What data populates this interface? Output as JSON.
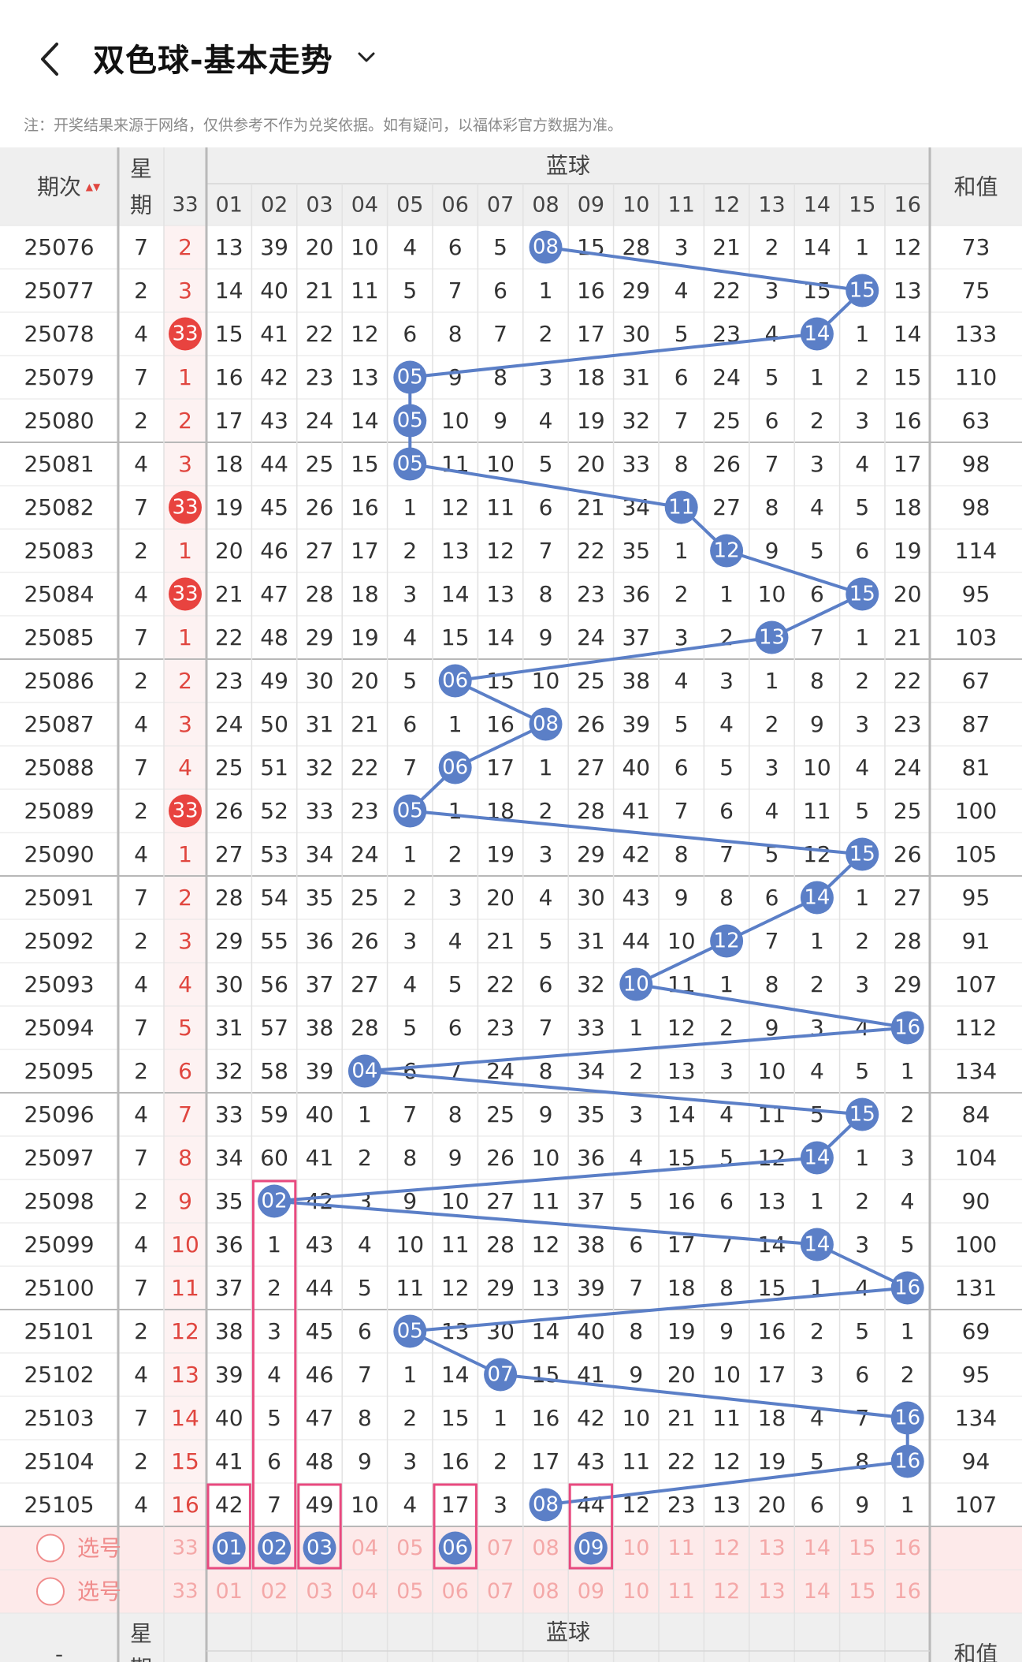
{
  "header": {
    "title": "双色球-基本走势",
    "notice": "注：开奖结果来源于网络，仅供参考不作为兑奖依据。如有疑问，以福体彩官方数据为准。"
  },
  "table": {
    "col_period": "期次",
    "sort_glyph": "▲▼",
    "col_week_top": "星",
    "col_week_bottom": "期",
    "col_left33": "33",
    "group_label": "蓝球",
    "col_sum": "和值",
    "blue_columns": [
      "01",
      "02",
      "03",
      "04",
      "05",
      "06",
      "07",
      "08",
      "09",
      "10",
      "11",
      "12",
      "13",
      "14",
      "15",
      "16"
    ],
    "rows": [
      {
        "period": "25076",
        "week": "7",
        "left": "2",
        "leftBall": false,
        "blue": [
          "13",
          "39",
          "20",
          "10",
          "4",
          "6",
          "5",
          "08",
          "15",
          "28",
          "3",
          "21",
          "2",
          "14",
          "1",
          "12"
        ],
        "hit": 8,
        "sum": "73"
      },
      {
        "period": "25077",
        "week": "2",
        "left": "3",
        "leftBall": false,
        "blue": [
          "14",
          "40",
          "21",
          "11",
          "5",
          "7",
          "6",
          "1",
          "16",
          "29",
          "4",
          "22",
          "3",
          "15",
          "15",
          "13"
        ],
        "hit": 15,
        "sum": "75"
      },
      {
        "period": "25078",
        "week": "4",
        "left": "33",
        "leftBall": true,
        "blue": [
          "15",
          "41",
          "22",
          "12",
          "6",
          "8",
          "7",
          "2",
          "17",
          "30",
          "5",
          "23",
          "4",
          "14",
          "1",
          "14"
        ],
        "hit": 14,
        "sum": "133"
      },
      {
        "period": "25079",
        "week": "7",
        "left": "1",
        "leftBall": false,
        "blue": [
          "16",
          "42",
          "23",
          "13",
          "05",
          "9",
          "8",
          "3",
          "18",
          "31",
          "6",
          "24",
          "5",
          "1",
          "2",
          "15"
        ],
        "hit": 5,
        "sum": "110"
      },
      {
        "period": "25080",
        "week": "2",
        "left": "2",
        "leftBall": false,
        "blue": [
          "17",
          "43",
          "24",
          "14",
          "05",
          "10",
          "9",
          "4",
          "19",
          "32",
          "7",
          "25",
          "6",
          "2",
          "3",
          "16"
        ],
        "hit": 5,
        "sum": "63"
      },
      {
        "period": "25081",
        "week": "4",
        "left": "3",
        "leftBall": false,
        "blue": [
          "18",
          "44",
          "25",
          "15",
          "05",
          "11",
          "10",
          "5",
          "20",
          "33",
          "8",
          "26",
          "7",
          "3",
          "4",
          "17"
        ],
        "hit": 5,
        "sum": "98"
      },
      {
        "period": "25082",
        "week": "7",
        "left": "33",
        "leftBall": true,
        "blue": [
          "19",
          "45",
          "26",
          "16",
          "1",
          "12",
          "11",
          "6",
          "21",
          "34",
          "11",
          "27",
          "8",
          "4",
          "5",
          "18"
        ],
        "hit": 11,
        "sum": "98"
      },
      {
        "period": "25083",
        "week": "2",
        "left": "1",
        "leftBall": false,
        "blue": [
          "20",
          "46",
          "27",
          "17",
          "2",
          "13",
          "12",
          "7",
          "22",
          "35",
          "1",
          "12",
          "9",
          "5",
          "6",
          "19"
        ],
        "hit": 12,
        "sum": "114"
      },
      {
        "period": "25084",
        "week": "4",
        "left": "33",
        "leftBall": true,
        "blue": [
          "21",
          "47",
          "28",
          "18",
          "3",
          "14",
          "13",
          "8",
          "23",
          "36",
          "2",
          "1",
          "10",
          "6",
          "15",
          "20"
        ],
        "hit": 15,
        "sum": "95"
      },
      {
        "period": "25085",
        "week": "7",
        "left": "1",
        "leftBall": false,
        "blue": [
          "22",
          "48",
          "29",
          "19",
          "4",
          "15",
          "14",
          "9",
          "24",
          "37",
          "3",
          "2",
          "13",
          "7",
          "1",
          "21"
        ],
        "hit": 13,
        "sum": "103"
      },
      {
        "period": "25086",
        "week": "2",
        "left": "2",
        "leftBall": false,
        "blue": [
          "23",
          "49",
          "30",
          "20",
          "5",
          "06",
          "15",
          "10",
          "25",
          "38",
          "4",
          "3",
          "1",
          "8",
          "2",
          "22"
        ],
        "hit": 6,
        "sum": "67"
      },
      {
        "period": "25087",
        "week": "4",
        "left": "3",
        "leftBall": false,
        "blue": [
          "24",
          "50",
          "31",
          "21",
          "6",
          "1",
          "16",
          "08",
          "26",
          "39",
          "5",
          "4",
          "2",
          "9",
          "3",
          "23"
        ],
        "hit": 8,
        "sum": "87"
      },
      {
        "period": "25088",
        "week": "7",
        "left": "4",
        "leftBall": false,
        "blue": [
          "25",
          "51",
          "32",
          "22",
          "7",
          "06",
          "17",
          "1",
          "27",
          "40",
          "6",
          "5",
          "3",
          "10",
          "4",
          "24"
        ],
        "hit": 6,
        "sum": "81"
      },
      {
        "period": "25089",
        "week": "2",
        "left": "33",
        "leftBall": true,
        "blue": [
          "26",
          "52",
          "33",
          "23",
          "05",
          "1",
          "18",
          "2",
          "28",
          "41",
          "7",
          "6",
          "4",
          "11",
          "5",
          "25"
        ],
        "hit": 5,
        "sum": "100"
      },
      {
        "period": "25090",
        "week": "4",
        "left": "1",
        "leftBall": false,
        "blue": [
          "27",
          "53",
          "34",
          "24",
          "1",
          "2",
          "19",
          "3",
          "29",
          "42",
          "8",
          "7",
          "5",
          "12",
          "15",
          "26"
        ],
        "hit": 15,
        "sum": "105"
      },
      {
        "period": "25091",
        "week": "7",
        "left": "2",
        "leftBall": false,
        "blue": [
          "28",
          "54",
          "35",
          "25",
          "2",
          "3",
          "20",
          "4",
          "30",
          "43",
          "9",
          "8",
          "6",
          "14",
          "1",
          "27"
        ],
        "hit": 14,
        "sum": "95"
      },
      {
        "period": "25092",
        "week": "2",
        "left": "3",
        "leftBall": false,
        "blue": [
          "29",
          "55",
          "36",
          "26",
          "3",
          "4",
          "21",
          "5",
          "31",
          "44",
          "10",
          "12",
          "7",
          "1",
          "2",
          "28"
        ],
        "hit": 12,
        "sum": "91"
      },
      {
        "period": "25093",
        "week": "4",
        "left": "4",
        "leftBall": false,
        "blue": [
          "30",
          "56",
          "37",
          "27",
          "4",
          "5",
          "22",
          "6",
          "32",
          "10",
          "11",
          "1",
          "8",
          "2",
          "3",
          "29"
        ],
        "hit": 10,
        "sum": "107"
      },
      {
        "period": "25094",
        "week": "7",
        "left": "5",
        "leftBall": false,
        "blue": [
          "31",
          "57",
          "38",
          "28",
          "5",
          "6",
          "23",
          "7",
          "33",
          "1",
          "12",
          "2",
          "9",
          "3",
          "4",
          "16"
        ],
        "hit": 16,
        "sum": "112"
      },
      {
        "period": "25095",
        "week": "2",
        "left": "6",
        "leftBall": false,
        "blue": [
          "32",
          "58",
          "39",
          "04",
          "6",
          "7",
          "24",
          "8",
          "34",
          "2",
          "13",
          "3",
          "10",
          "4",
          "5",
          "1"
        ],
        "hit": 4,
        "sum": "134"
      },
      {
        "period": "25096",
        "week": "4",
        "left": "7",
        "leftBall": false,
        "blue": [
          "33",
          "59",
          "40",
          "1",
          "7",
          "8",
          "25",
          "9",
          "35",
          "3",
          "14",
          "4",
          "11",
          "5",
          "15",
          "2"
        ],
        "hit": 15,
        "sum": "84"
      },
      {
        "period": "25097",
        "week": "7",
        "left": "8",
        "leftBall": false,
        "blue": [
          "34",
          "60",
          "41",
          "2",
          "8",
          "9",
          "26",
          "10",
          "36",
          "4",
          "15",
          "5",
          "12",
          "14",
          "1",
          "3"
        ],
        "hit": 14,
        "sum": "104"
      },
      {
        "period": "25098",
        "week": "2",
        "left": "9",
        "leftBall": false,
        "blue": [
          "35",
          "02",
          "42",
          "3",
          "9",
          "10",
          "27",
          "11",
          "37",
          "5",
          "16",
          "6",
          "13",
          "1",
          "2",
          "4"
        ],
        "hit": 2,
        "sum": "90"
      },
      {
        "period": "25099",
        "week": "4",
        "left": "10",
        "leftBall": false,
        "blue": [
          "36",
          "1",
          "43",
          "4",
          "10",
          "11",
          "28",
          "12",
          "38",
          "6",
          "17",
          "7",
          "14",
          "14",
          "3",
          "5"
        ],
        "hit": 14,
        "sum": "100"
      },
      {
        "period": "25100",
        "week": "7",
        "left": "11",
        "leftBall": false,
        "blue": [
          "37",
          "2",
          "44",
          "5",
          "11",
          "12",
          "29",
          "13",
          "39",
          "7",
          "18",
          "8",
          "15",
          "1",
          "4",
          "16"
        ],
        "hit": 16,
        "sum": "131"
      },
      {
        "period": "25101",
        "week": "2",
        "left": "12",
        "leftBall": false,
        "blue": [
          "38",
          "3",
          "45",
          "6",
          "05",
          "13",
          "30",
          "14",
          "40",
          "8",
          "19",
          "9",
          "16",
          "2",
          "5",
          "1"
        ],
        "hit": 5,
        "sum": "69"
      },
      {
        "period": "25102",
        "week": "4",
        "left": "13",
        "leftBall": false,
        "blue": [
          "39",
          "4",
          "46",
          "7",
          "1",
          "14",
          "07",
          "15",
          "41",
          "9",
          "20",
          "10",
          "17",
          "3",
          "6",
          "2"
        ],
        "hit": 7,
        "sum": "95"
      },
      {
        "period": "25103",
        "week": "7",
        "left": "14",
        "leftBall": false,
        "blue": [
          "40",
          "5",
          "47",
          "8",
          "2",
          "15",
          "1",
          "16",
          "42",
          "10",
          "21",
          "11",
          "18",
          "4",
          "7",
          "16"
        ],
        "hit": 16,
        "sum": "134"
      },
      {
        "period": "25104",
        "week": "2",
        "left": "15",
        "leftBall": false,
        "blue": [
          "41",
          "6",
          "48",
          "9",
          "3",
          "16",
          "2",
          "17",
          "43",
          "11",
          "22",
          "12",
          "19",
          "5",
          "8",
          "16"
        ],
        "hit": 16,
        "sum": "94"
      },
      {
        "period": "25105",
        "week": "4",
        "left": "16",
        "leftBall": false,
        "blue": [
          "42",
          "7",
          "49",
          "10",
          "4",
          "17",
          "3",
          "08",
          "44",
          "12",
          "23",
          "13",
          "20",
          "6",
          "9",
          "1"
        ],
        "hit": 8,
        "sum": "107"
      }
    ],
    "pick_rows": [
      {
        "label": "选号",
        "left": "33",
        "values": [
          "01",
          "02",
          "03",
          "04",
          "05",
          "06",
          "07",
          "08",
          "09",
          "10",
          "11",
          "12",
          "13",
          "14",
          "15",
          "16"
        ],
        "selected": [
          1,
          2,
          3,
          6,
          9
        ]
      },
      {
        "label": "选号",
        "left": "33",
        "values": [
          "01",
          "02",
          "03",
          "04",
          "05",
          "06",
          "07",
          "08",
          "09",
          "10",
          "11",
          "12",
          "13",
          "14",
          "15",
          "16"
        ],
        "selected": []
      }
    ],
    "highlight_columns": [
      1,
      2,
      3,
      6,
      9
    ],
    "footer": {
      "period": "-",
      "week_top": "星",
      "week_bottom": "期",
      "group_label": "蓝球",
      "sum": "和值"
    }
  },
  "colors": {
    "blue_ball": "#5b7fc7",
    "red_ball": "#e8433f",
    "red_text": "#e0463f",
    "pink_box": "#e84a7f",
    "pick_bg": "#fdeaea",
    "pick_text": "#f4a8a8",
    "header_bg": "#efefef"
  }
}
